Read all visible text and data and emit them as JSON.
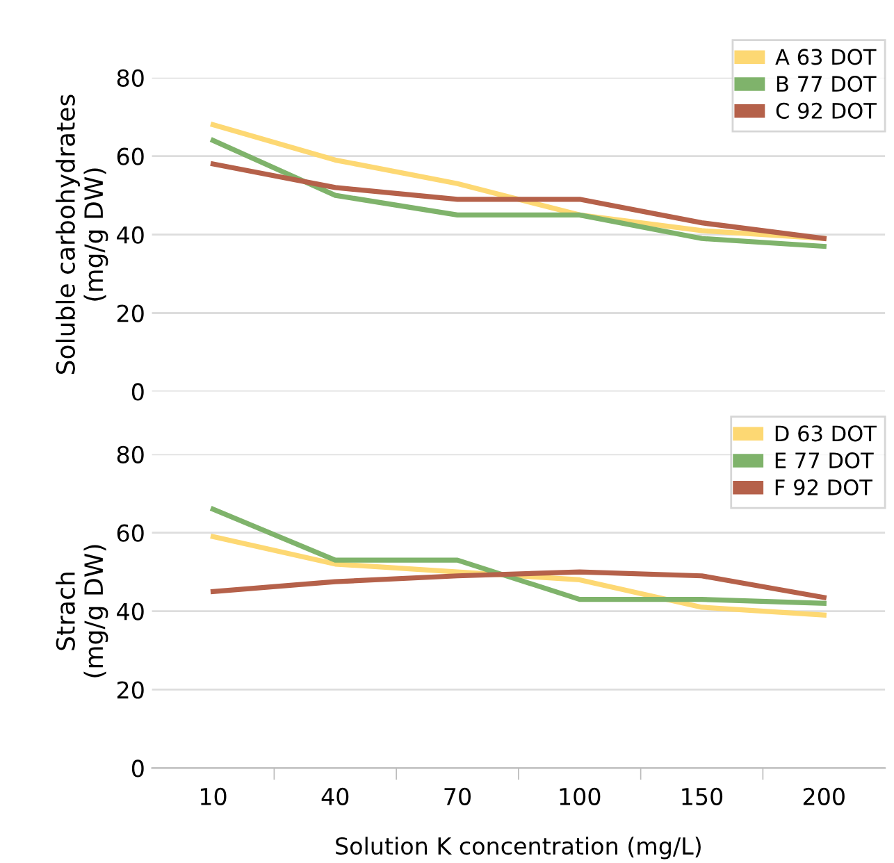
{
  "chart_data": [
    {
      "type": "line",
      "ylabel": "Soluble carbohydrates\n(mg/g DW)",
      "categories": [
        "10",
        "40",
        "70",
        "100",
        "150",
        "200"
      ],
      "ylim": [
        0,
        80
      ],
      "yticks": [
        0,
        20,
        40,
        60,
        80
      ],
      "grid": "y",
      "legend": "top right",
      "tick_labels": "y",
      "series": [
        {
          "name": "A 63 DOT",
          "color": "#fdd873",
          "values": [
            68,
            59,
            53,
            45,
            41,
            39
          ]
        },
        {
          "name": "B 77 DOT",
          "color": "#7fb36b",
          "values": [
            64,
            50,
            45,
            45,
            39,
            37
          ]
        },
        {
          "name": "C 92 DOT",
          "color": "#b5614a",
          "values": [
            58,
            52,
            49,
            49,
            43,
            39
          ]
        }
      ]
    },
    {
      "type": "line",
      "ylabel": "Strach\n(mg/g DW)",
      "xlabel": "Solution K concentration (mg/L)",
      "categories": [
        "10",
        "40",
        "70",
        "100",
        "150",
        "200"
      ],
      "ylim": [
        0,
        80
      ],
      "yticks": [
        0,
        20,
        40,
        60,
        80
      ],
      "grid": "y",
      "legend": "top right",
      "series": [
        {
          "name": "D 63 DOT",
          "color": "#fdd873",
          "values": [
            59,
            52,
            50,
            48,
            41,
            39
          ]
        },
        {
          "name": "E 77 DOT",
          "color": "#7fb36b",
          "values": [
            66,
            53,
            53,
            43,
            43,
            42
          ]
        },
        {
          "name": "F 92 DOT",
          "color": "#b5614a",
          "values": [
            45,
            47.5,
            49,
            50,
            49,
            43.5
          ]
        }
      ]
    }
  ]
}
